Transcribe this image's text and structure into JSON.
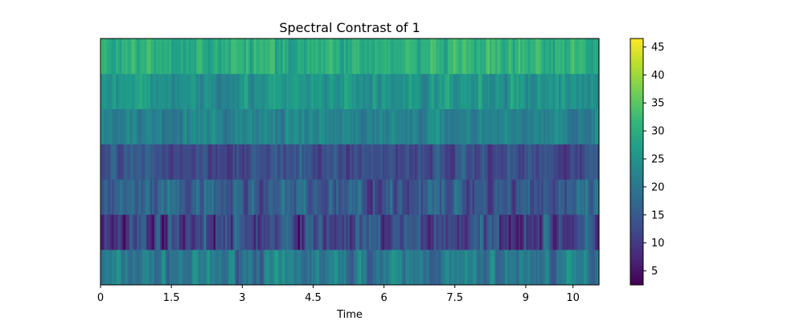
{
  "chart_data": {
    "type": "heatmap",
    "title": "Spectral Contrast of 1",
    "xlabel": "Time",
    "ylabel": "",
    "x_ticks": [
      "0",
      "1.5",
      "3",
      "4.5",
      "6",
      "7.5",
      "9",
      "10"
    ],
    "x_tick_values": [
      0,
      1.5,
      3,
      4.5,
      6,
      7.5,
      9,
      10
    ],
    "xlim": [
      0,
      10.55
    ],
    "n_bands": 7,
    "n_frames": 260,
    "band_mean_values": [
      20,
      12,
      15,
      13,
      22,
      25,
      30
    ],
    "band_variation": [
      4.5,
      6.0,
      5.0,
      3.5,
      3.0,
      3.5,
      3.5
    ],
    "colorbar": {
      "ticks": [
        "5",
        "10",
        "15",
        "20",
        "25",
        "30",
        "35",
        "40",
        "45"
      ],
      "tick_values": [
        5,
        10,
        15,
        20,
        25,
        30,
        35,
        40,
        45
      ],
      "range": [
        2.5,
        46.5
      ]
    },
    "colormap": "viridis",
    "colormap_stops": [
      "#440154",
      "#482878",
      "#3e4a89",
      "#31688e",
      "#26828e",
      "#1f9e89",
      "#35b779",
      "#6ece58",
      "#b5de2b",
      "#fde725"
    ]
  }
}
